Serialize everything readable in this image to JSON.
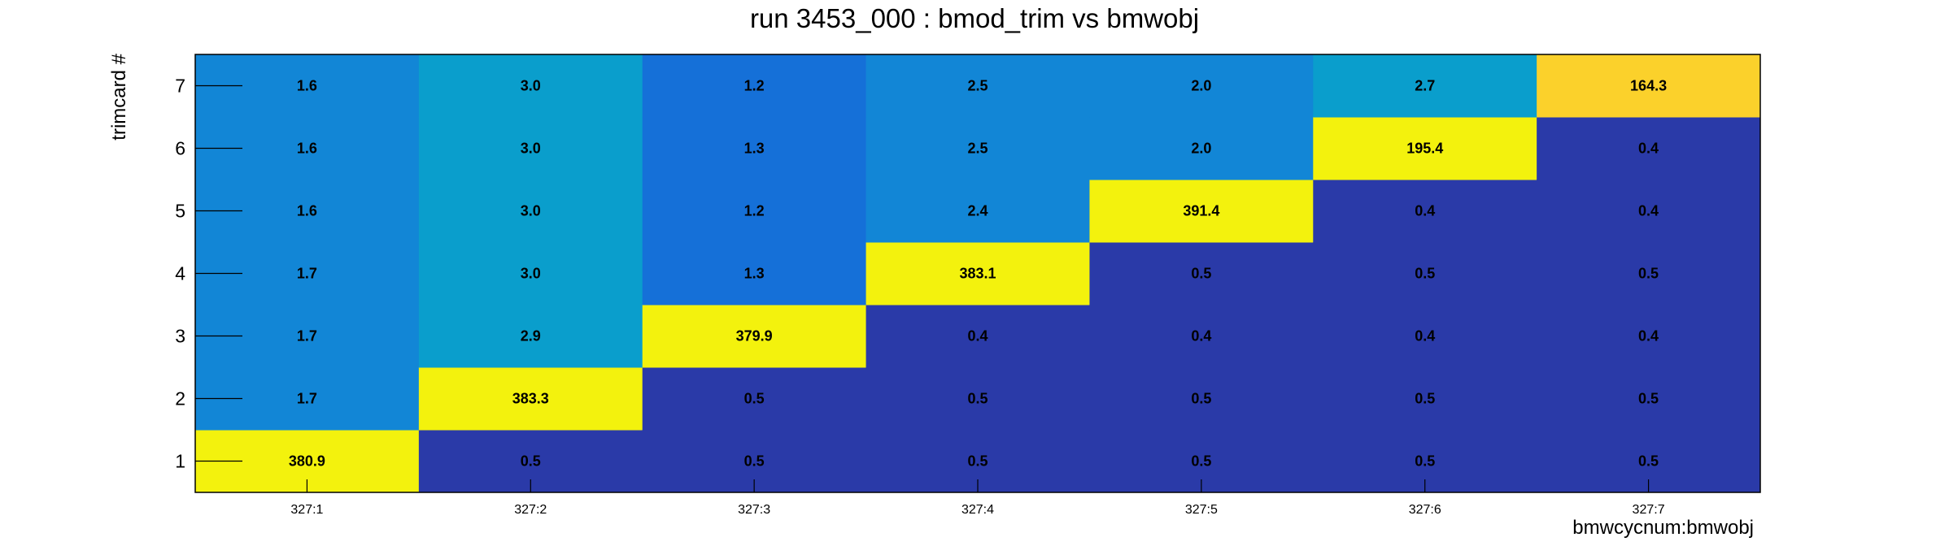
{
  "chart_data": {
    "type": "heatmap",
    "title": "run 3453_000 : bmod_trim vs bmwobj",
    "xlabel": "bmwcycnum:bmwobj",
    "ylabel": "trimcard #",
    "x_categories": [
      "327:1",
      "327:2",
      "327:3",
      "327:4",
      "327:5",
      "327:6",
      "327:7"
    ],
    "y_categories": [
      "1",
      "2",
      "3",
      "4",
      "5",
      "6",
      "7"
    ],
    "values": [
      [
        380.9,
        1.7,
        1.7,
        1.7,
        1.6,
        1.6,
        1.6
      ],
      [
        0.5,
        383.3,
        2.9,
        3.0,
        3.0,
        3.0,
        3.0
      ],
      [
        0.5,
        0.5,
        379.9,
        1.3,
        1.2,
        1.3,
        1.2
      ],
      [
        0.5,
        0.5,
        0.4,
        383.1,
        2.4,
        2.5,
        2.5
      ],
      [
        0.5,
        0.5,
        0.4,
        0.5,
        391.4,
        2.0,
        2.0
      ],
      [
        0.5,
        0.5,
        0.4,
        0.5,
        0.4,
        195.4,
        2.7
      ],
      [
        0.5,
        0.5,
        0.4,
        0.5,
        0.4,
        0.4,
        164.3
      ]
    ],
    "value_labels": [
      [
        "380.9",
        "1.7",
        "1.7",
        "1.7",
        "1.6",
        "1.6",
        "1.6"
      ],
      [
        "0.5",
        "383.3",
        "2.9",
        "3.0",
        "3.0",
        "3.0",
        "3.0"
      ],
      [
        "0.5",
        "0.5",
        "379.9",
        "1.3",
        "1.2",
        "1.3",
        "1.2"
      ],
      [
        "0.5",
        "0.5",
        "0.4",
        "383.1",
        "2.4",
        "2.5",
        "2.5"
      ],
      [
        "0.5",
        "0.5",
        "0.4",
        "0.5",
        "391.4",
        "2.0",
        "2.0"
      ],
      [
        "0.5",
        "0.5",
        "0.4",
        "0.5",
        "0.4",
        "195.4",
        "2.7"
      ],
      [
        "0.5",
        "0.5",
        "0.4",
        "0.5",
        "0.4",
        "0.4",
        "164.3"
      ]
    ],
    "zlim": [
      0,
      391.4
    ],
    "colormap": "parula",
    "palette": [
      "#2a3aa8",
      "#1570d8",
      "#1286d6",
      "#0a9ecc",
      "#f3f20d",
      "#fbd12b"
    ]
  }
}
